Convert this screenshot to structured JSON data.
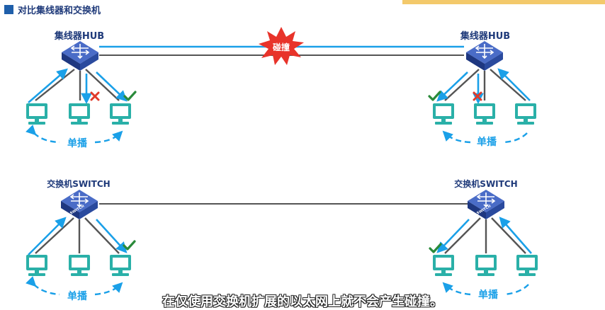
{
  "header": {
    "title": "对比集线器和交换机"
  },
  "hub": {
    "left_label": "集线器HUB",
    "right_label": "集线器HUB",
    "collision_label": "碰撞",
    "left_broadcast": "单播",
    "right_broadcast": "单播"
  },
  "switch": {
    "left_label": "交换机SWITCH",
    "right_label": "交换机SWITCH",
    "device_text": "SWITCH",
    "left_broadcast": "单播",
    "right_broadcast": "单播"
  },
  "subtitle": "在仅使用交换机扩展的以太网上就不会产生碰撞。",
  "colors": {
    "device": "#2d4a9e",
    "link": "#555555",
    "arrow": "#1aa0e8",
    "pc": "#2ab0a8",
    "check": "#2a8a3a",
    "cross": "#e03a2a",
    "collision": "#e8332a"
  },
  "icons": [
    "hub-icon",
    "switch-icon",
    "pc-icon",
    "check-icon",
    "cross-icon",
    "collision-burst-icon"
  ]
}
